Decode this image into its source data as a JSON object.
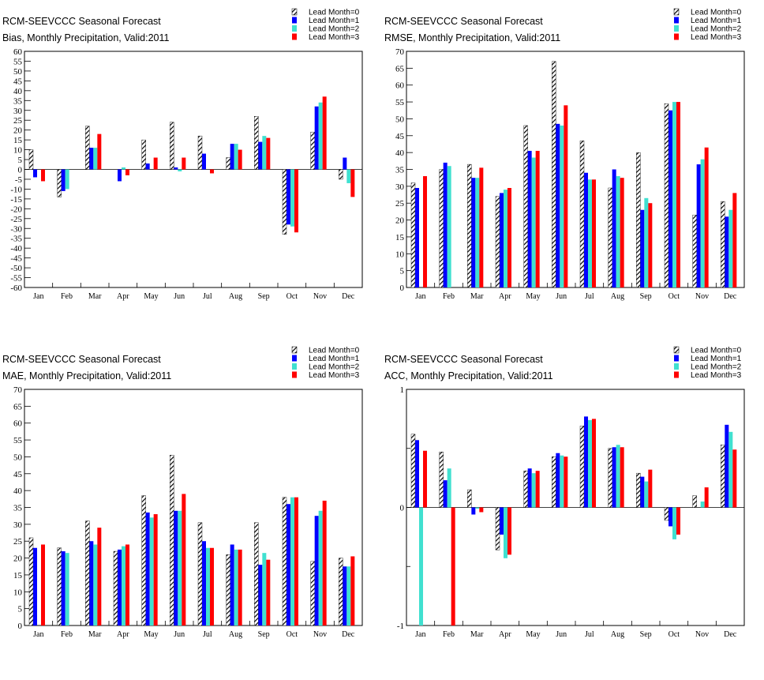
{
  "legend": [
    "Lead Month=0",
    "Lead Month=1",
    "Lead Month=2",
    "Lead Month=3"
  ],
  "colors": {
    "lead0": "hatch",
    "lead1": "#0000ff",
    "lead2": "#40e0d0",
    "lead3": "#ff0000"
  },
  "chart_data": [
    {
      "type": "bar",
      "title": "RCM-SEEVCCC Seasonal Forecast",
      "subtitle": "Bias, Monthly Precipitation, Valid:2011",
      "categories": [
        "Jan",
        "Feb",
        "Mar",
        "Apr",
        "May",
        "Jun",
        "Jul",
        "Aug",
        "Sep",
        "Oct",
        "Nov",
        "Dec"
      ],
      "ylim": [
        -60,
        60
      ],
      "ytick_step": 5,
      "yticks": [
        "-60",
        "-55",
        "-50",
        "-45",
        "-40",
        "-35",
        "-30",
        "-25",
        "-20",
        "-15",
        "-10",
        "-5",
        "0",
        "5",
        "10",
        "15",
        "20",
        "25",
        "30",
        "35",
        "40",
        "45",
        "50",
        "55",
        "60"
      ],
      "series": [
        {
          "name": "Lead Month=0",
          "values": [
            10,
            -14,
            22,
            0,
            15,
            24,
            17,
            6,
            27,
            -33,
            19,
            -5
          ]
        },
        {
          "name": "Lead Month=1",
          "values": [
            -4,
            -11,
            11,
            -6,
            3,
            1,
            8,
            13,
            14,
            -28,
            32,
            6
          ]
        },
        {
          "name": "Lead Month=2",
          "values": [
            0,
            -10,
            11,
            1,
            0,
            -1,
            0,
            13,
            17,
            -29,
            34,
            -7
          ]
        },
        {
          "name": "Lead Month=3",
          "values": [
            -6,
            0,
            18,
            -3,
            6,
            6,
            -2,
            10,
            16,
            -32,
            37,
            -14
          ]
        }
      ]
    },
    {
      "type": "bar",
      "title": "RCM-SEEVCCC Seasonal Forecast",
      "subtitle": "RMSE, Monthly Precipitation, Valid:2011",
      "categories": [
        "Jan",
        "Feb",
        "Mar",
        "Apr",
        "May",
        "Jun",
        "Jul",
        "Aug",
        "Sep",
        "Oct",
        "Nov",
        "Dec"
      ],
      "ylim": [
        0,
        70
      ],
      "ytick_step": 5,
      "yticks": [
        "0",
        "5",
        "10",
        "15",
        "20",
        "25",
        "30",
        "35",
        "40",
        "45",
        "50",
        "55",
        "60",
        "65",
        "70"
      ],
      "series": [
        {
          "name": "Lead Month=0",
          "values": [
            31,
            35,
            36.5,
            27,
            48,
            67,
            43.5,
            29.5,
            40,
            54.5,
            21.5,
            25.5
          ]
        },
        {
          "name": "Lead Month=1",
          "values": [
            29.5,
            37,
            32.5,
            28,
            40.5,
            48.5,
            34,
            35,
            23,
            52.5,
            36.5,
            21
          ]
        },
        {
          "name": "Lead Month=2",
          "values": [
            0,
            36,
            32.5,
            29,
            38.5,
            48,
            32,
            33,
            26.5,
            55,
            38,
            23
          ]
        },
        {
          "name": "Lead Month=3",
          "values": [
            33,
            0,
            35.5,
            29.5,
            40.5,
            54,
            32,
            32.5,
            25,
            55,
            41.5,
            28
          ]
        }
      ]
    },
    {
      "type": "bar",
      "title": "RCM-SEEVCCC Seasonal Forecast",
      "subtitle": "MAE, Monthly Precipitation, Valid:2011",
      "categories": [
        "Jan",
        "Feb",
        "Mar",
        "Apr",
        "May",
        "Jun",
        "Jul",
        "Aug",
        "Sep",
        "Oct",
        "Nov",
        "Dec"
      ],
      "ylim": [
        0,
        70
      ],
      "ytick_step": 5,
      "yticks": [
        "0",
        "5",
        "10",
        "15",
        "20",
        "25",
        "30",
        "35",
        "40",
        "45",
        "50",
        "55",
        "60",
        "65",
        "70"
      ],
      "series": [
        {
          "name": "Lead Month=0",
          "values": [
            26,
            23,
            31,
            22,
            38.5,
            50.5,
            30.5,
            21,
            30.5,
            38,
            19,
            20
          ]
        },
        {
          "name": "Lead Month=1",
          "values": [
            23,
            22,
            25,
            22.5,
            33.5,
            34,
            25,
            24,
            18,
            36,
            32.5,
            17.5
          ]
        },
        {
          "name": "Lead Month=2",
          "values": [
            0,
            21.5,
            24,
            23.5,
            32,
            34,
            23,
            22.5,
            21.5,
            38,
            34,
            17.5
          ]
        },
        {
          "name": "Lead Month=3",
          "values": [
            24,
            0,
            29,
            24,
            33,
            39,
            23,
            22.5,
            19.5,
            38,
            37,
            20.5
          ]
        }
      ]
    },
    {
      "type": "bar",
      "title": "RCM-SEEVCCC Seasonal Forecast",
      "subtitle": "ACC, Monthly Precipitation, Valid:2011",
      "categories": [
        "Jan",
        "Feb",
        "Mar",
        "Apr",
        "May",
        "Jun",
        "Jul",
        "Aug",
        "Sep",
        "Oct",
        "Nov",
        "Dec"
      ],
      "ylim": [
        -1,
        1
      ],
      "ytick_step": 1,
      "yticks": [
        "-1",
        "0",
        "1"
      ],
      "series": [
        {
          "name": "Lead Month=0",
          "values": [
            0.62,
            0.47,
            0.15,
            -0.36,
            0.31,
            0.43,
            0.69,
            0.5,
            0.29,
            -0.11,
            0.1,
            0.53
          ]
        },
        {
          "name": "Lead Month=1",
          "values": [
            0.57,
            0.23,
            -0.06,
            -0.23,
            0.33,
            0.46,
            0.77,
            0.51,
            0.26,
            -0.16,
            0,
            0.7
          ]
        },
        {
          "name": "Lead Month=2",
          "values": [
            -1,
            0.33,
            -0.01,
            -0.43,
            0.29,
            0.44,
            0.74,
            0.53,
            0.22,
            -0.27,
            0.05,
            0.64
          ]
        },
        {
          "name": "Lead Month=3",
          "values": [
            0.48,
            -1,
            -0.04,
            -0.4,
            0.31,
            0.43,
            0.75,
            0.51,
            0.32,
            -0.23,
            0.17,
            0.49
          ]
        }
      ]
    }
  ]
}
